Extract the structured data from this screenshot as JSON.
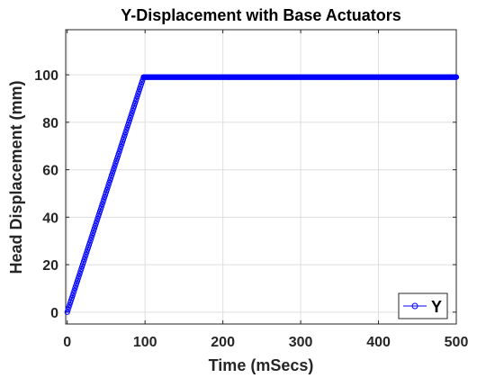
{
  "chart_data": {
    "type": "line",
    "title": "Y-Displacement with Base Actuators",
    "xlabel": "Time (mSecs)",
    "ylabel": "Head Displacement (mm)",
    "xlim": [
      -2,
      500
    ],
    "ylim": [
      -5,
      119
    ],
    "xticks": [
      0,
      100,
      200,
      300,
      400,
      500
    ],
    "yticks": [
      0,
      20,
      40,
      60,
      80,
      100
    ],
    "grid": true,
    "legend_position": "bottom-right",
    "series": [
      {
        "name": "Y",
        "color": "#0000ff",
        "marker": "circle",
        "x_start": 0,
        "x_end": 500,
        "x_step": 1,
        "points": [
          {
            "x": 0,
            "y": 0
          },
          {
            "x": 98,
            "y": 99
          },
          {
            "x": 500,
            "y": 99
          }
        ]
      }
    ]
  }
}
